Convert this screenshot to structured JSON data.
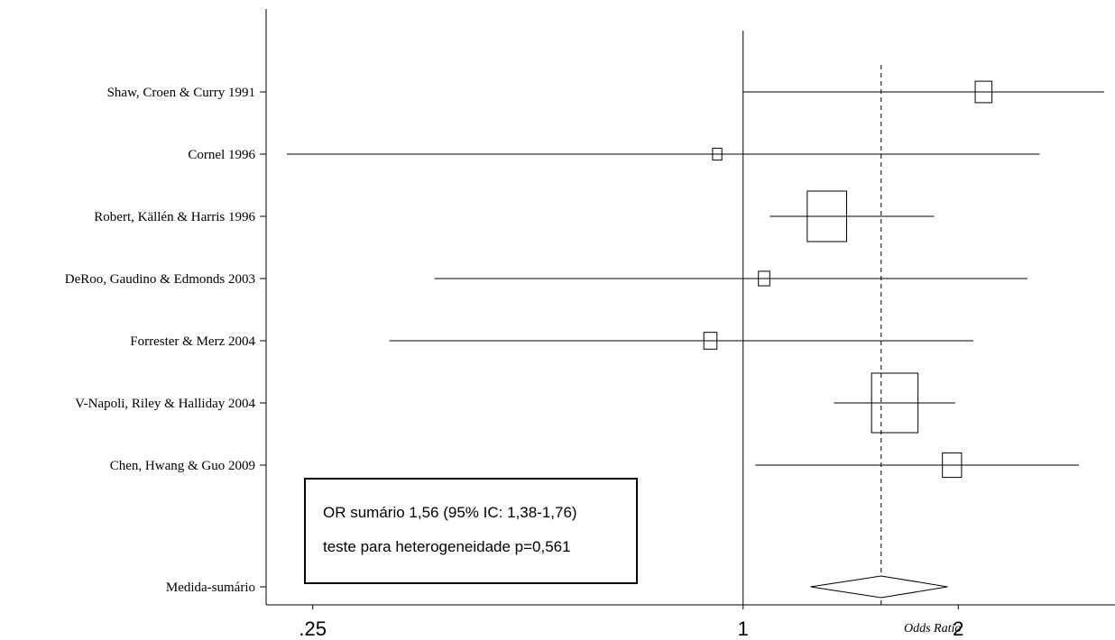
{
  "chart_data": {
    "type": "forest",
    "xlabel": "Odds Ratio",
    "x_scale": "log",
    "xlim": [
      0.23,
      3.2
    ],
    "x_ticks": [
      {
        "value": 0.25,
        "label": ".25"
      },
      {
        "value": 1,
        "label": "1"
      },
      {
        "value": 2,
        "label": "2"
      }
    ],
    "reference_line": 1,
    "pooled_line": 1.56,
    "studies": [
      {
        "label": "Shaw, Croen & Curry 1991",
        "or": 2.17,
        "ci": [
          1.0,
          3.2
        ],
        "weight": 0.13
      },
      {
        "label": "Cornel 1996",
        "or": 0.92,
        "ci": [
          0.23,
          2.6
        ],
        "weight": 0.04
      },
      {
        "label": "Robert, Källén & Harris 1996",
        "or": 1.31,
        "ci": [
          1.09,
          1.85
        ],
        "weight": 0.72
      },
      {
        "label": "DeRoo, Gaudino & Edmonds 2003",
        "or": 1.07,
        "ci": [
          0.37,
          2.5
        ],
        "weight": 0.06
      },
      {
        "label": "Forrester & Merz 2004",
        "or": 0.9,
        "ci": [
          0.32,
          2.1
        ],
        "weight": 0.08
      },
      {
        "label": "V-Napoli, Riley & Halliday 2004",
        "or": 1.63,
        "ci": [
          1.34,
          1.98
        ],
        "weight": 1.0
      },
      {
        "label": "Chen, Hwang & Guo 2009",
        "or": 1.96,
        "ci": [
          1.04,
          2.95
        ],
        "weight": 0.17
      }
    ],
    "summary": {
      "label": "Medida-sumário",
      "or": 1.56,
      "ci": [
        1.38,
        1.76
      ]
    },
    "annotation": {
      "line1": "OR sumário 1,56 (95% IC: 1,38-1,76)",
      "line2": "teste para heterogeneidade p=0,561"
    }
  }
}
